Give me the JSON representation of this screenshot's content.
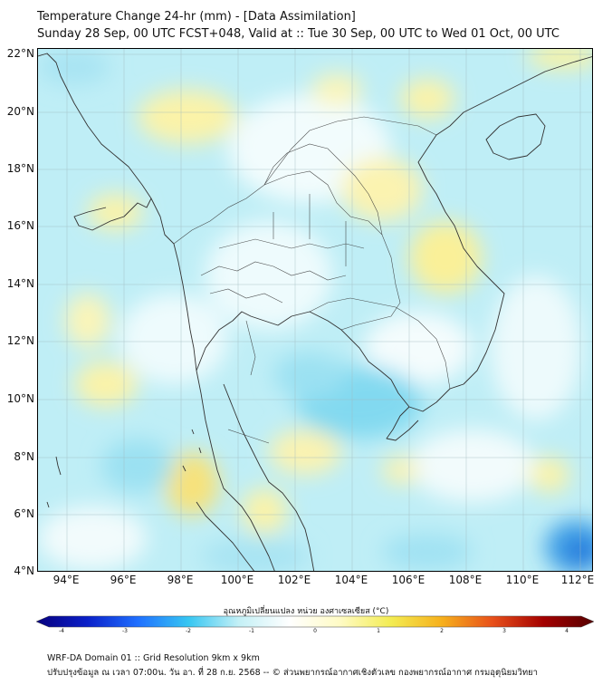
{
  "header": {
    "title": "Temperature Change 24-hr (mm) - [Data Assimilation]",
    "subtitle": "Sunday 28 Sep, 00 UTC FCST+048, Valid at :: Tue 30 Sep, 00 UTC to Wed 01 Oct, 00 UTC"
  },
  "map": {
    "lat_range": [
      4,
      22.2
    ],
    "lon_range": [
      93,
      112.5
    ],
    "lat_ticks": [
      "22°N",
      "20°N",
      "18°N",
      "16°N",
      "14°N",
      "12°N",
      "10°N",
      "8°N",
      "6°N",
      "4°N"
    ],
    "lon_ticks": [
      "94°E",
      "96°E",
      "98°E",
      "100°E",
      "102°E",
      "104°E",
      "106°E",
      "108°E",
      "110°E",
      "112°E"
    ],
    "grid": true,
    "background_color": "#bfeef6",
    "coastline_color": "#333333"
  },
  "colorbar": {
    "label": "อุณหภูมิเปลี่ยนแปลง หน่วย องศาเซลเซียส (°C)",
    "ticks": [
      "-4",
      "-3",
      "-2",
      "-1",
      "0",
      "1",
      "2",
      "3",
      "4"
    ],
    "range": [
      -4,
      4
    ],
    "colors": [
      "#07007e",
      "#0a1fc8",
      "#1f6fff",
      "#36c6f2",
      "#c4f0f6",
      "#ffffff",
      "#fffbc4",
      "#f3ec52",
      "#f6b01c",
      "#e8501a",
      "#a40000",
      "#560000"
    ]
  },
  "footer": {
    "line1": "WRF-DA Domain 01 :: Grid Resolution 9km x 9km",
    "line2": "ปรับปรุงข้อมูล ณ เวลา 07:00น. วัน อา. ที่ 28 ก.ย. 2568 -- © ส่วนพยากรณ์อากาศเชิงตัวเลข กองพยากรณ์อากาศ กรมอุตุนิยมวิทยา"
  }
}
